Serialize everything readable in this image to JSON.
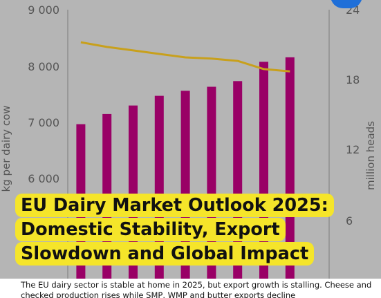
{
  "chart_data": {
    "type": "bar",
    "categories": [
      "",
      "",
      "",
      "",
      "",
      "",
      "",
      "",
      "",
      ""
    ],
    "series": [
      {
        "axis": "left",
        "mark": "bar",
        "color": "#990066",
        "values": [
          6980,
          7160,
          7310,
          7480,
          7570,
          7640,
          7740,
          8080,
          8160,
          null
        ]
      },
      {
        "axis": "right",
        "mark": "line",
        "color": "#c8a01c",
        "values": [
          21.2,
          20.8,
          20.5,
          20.2,
          19.9,
          19.8,
          19.6,
          18.9,
          18.7,
          null
        ]
      }
    ],
    "ylabel_left": "kg per dairy cow",
    "ylabel_right": "million heads",
    "yticks_left": [
      "9 000",
      "8 000",
      "7 000",
      "6 000"
    ],
    "yticks_right": [
      "24",
      "18",
      "12",
      "6"
    ],
    "ylim_left": [
      5200,
      9000
    ],
    "ylim_right": [
      5.6,
      24
    ],
    "grid": false,
    "legend": "none"
  },
  "headline": {
    "line1": "EU Dairy Market Outlook 2025:",
    "line2": "Domestic Stability, Export",
    "line3": "Slowdown and Global Impact"
  },
  "caption": {
    "text": "The EU dairy sector is stable at home in 2025, but export growth is stalling. Cheese and checked production rises while SMP, WMP and butter exports decline"
  },
  "colors": {
    "highlight": "#f5e52a",
    "background": "#b5b5b5",
    "logo": "#1f6fd8"
  }
}
